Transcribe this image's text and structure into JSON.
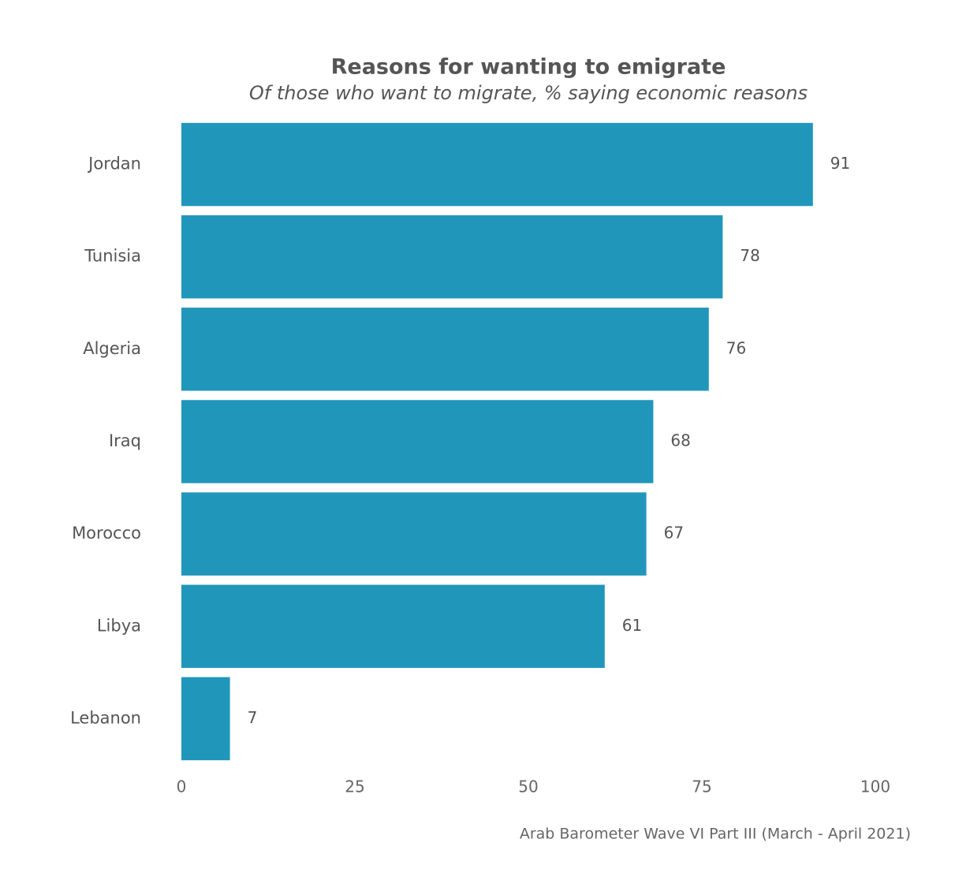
{
  "chart_data": {
    "type": "bar",
    "orientation": "horizontal",
    "title": "Reasons for wanting to emigrate",
    "subtitle": "Of those who want to migrate, % saying economic reasons",
    "source": "Arab Barometer Wave VI Part III (March - April 2021)",
    "categories": [
      "Jordan",
      "Tunisia",
      "Algeria",
      "Iraq",
      "Morocco",
      "Libya",
      "Lebanon"
    ],
    "values": [
      91,
      78,
      76,
      68,
      67,
      61,
      7
    ],
    "color": "#2196bb",
    "xlim": [
      0,
      100
    ],
    "xticks": [
      0,
      25,
      50,
      75,
      100
    ],
    "grid": false
  }
}
